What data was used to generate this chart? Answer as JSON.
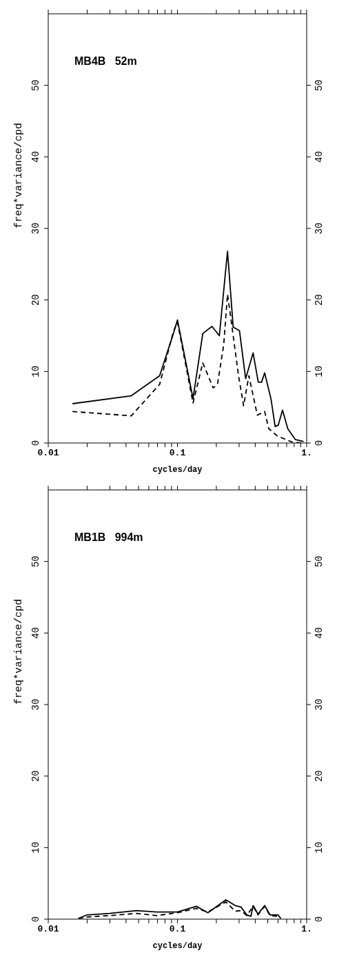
{
  "chart_data": [
    {
      "type": "line",
      "annotations": [
        "MB4B   52m"
      ],
      "xlabel": "cycles/day",
      "ylabel": "freq*variance/cpd",
      "log": "x",
      "xlim": [
        0.01,
        1
      ],
      "xticks": [
        {
          "value": 0.01,
          "label": "0.01"
        },
        {
          "value": 0.02,
          "label": null
        },
        {
          "value": 0.03,
          "label": null
        },
        {
          "value": 0.04,
          "label": null
        },
        {
          "value": 0.05,
          "label": null
        },
        {
          "value": 0.06,
          "label": null
        },
        {
          "value": 0.07,
          "label": null
        },
        {
          "value": 0.08,
          "label": null
        },
        {
          "value": 0.09,
          "label": null
        },
        {
          "value": 0.1,
          "label": "0.1"
        },
        {
          "value": 0.2,
          "label": null
        },
        {
          "value": 0.3,
          "label": null
        },
        {
          "value": 0.4,
          "label": null
        },
        {
          "value": 0.5,
          "label": null
        },
        {
          "value": 0.6,
          "label": null
        },
        {
          "value": 0.7,
          "label": null
        },
        {
          "value": 0.8,
          "label": null
        },
        {
          "value": 0.9,
          "label": null
        },
        {
          "value": 1,
          "label": "1."
        }
      ],
      "ylim": [
        0,
        60
      ],
      "yticks": [
        0,
        10,
        20,
        30,
        40,
        50
      ],
      "y2lim": [
        0,
        60
      ],
      "y2ticks": [
        0,
        10,
        20,
        30,
        40,
        50
      ],
      "series": [
        {
          "color": "#000000",
          "line_style": "solid",
          "x": [
            0.0154,
            0.0439,
            0.0728,
            0.093,
            0.1,
            0.132,
            0.157,
            0.185,
            0.211,
            0.244,
            0.27,
            0.302,
            0.337,
            0.385,
            0.422,
            0.447,
            0.473,
            0.529,
            0.57,
            0.603,
            0.65,
            0.714,
            0.815,
            0.946
          ],
          "values": [
            5.5,
            6.6,
            9.4,
            15.3,
            17.2,
            6.2,
            15.3,
            16.3,
            15.0,
            26.8,
            16.2,
            15.7,
            9.0,
            12.6,
            8.5,
            8.5,
            9.8,
            6.2,
            2.3,
            2.5,
            4.6,
            2.0,
            0.5,
            0.2
          ]
        },
        {
          "color": "#000000",
          "line_style": "dashed",
          "x": [
            0.0154,
            0.0439,
            0.0728,
            0.093,
            0.1,
            0.132,
            0.157,
            0.189,
            0.204,
            0.228,
            0.244,
            0.26,
            0.297,
            0.325,
            0.357,
            0.415,
            0.473,
            0.509,
            0.591,
            0.689,
            0.78,
            0.93
          ],
          "values": [
            4.4,
            3.8,
            8.2,
            15.6,
            16.9,
            5.6,
            11.2,
            7.7,
            8.2,
            13.7,
            20.8,
            17.2,
            9.4,
            5.2,
            9.4,
            3.9,
            4.4,
            2.0,
            1.0,
            0.5,
            0.1,
            0
          ]
        }
      ]
    },
    {
      "type": "line",
      "annotations": [
        "MB1B   994m"
      ],
      "xlabel": "cycles/day",
      "ylabel": "freq*variance/cpd",
      "log": "x",
      "xlim": [
        0.01,
        1
      ],
      "xticks": [
        {
          "value": 0.01,
          "label": "0.01"
        },
        {
          "value": 0.02,
          "label": null
        },
        {
          "value": 0.03,
          "label": null
        },
        {
          "value": 0.04,
          "label": null
        },
        {
          "value": 0.05,
          "label": null
        },
        {
          "value": 0.06,
          "label": null
        },
        {
          "value": 0.07,
          "label": null
        },
        {
          "value": 0.08,
          "label": null
        },
        {
          "value": 0.09,
          "label": null
        },
        {
          "value": 0.1,
          "label": "0.1"
        },
        {
          "value": 0.2,
          "label": null
        },
        {
          "value": 0.3,
          "label": null
        },
        {
          "value": 0.4,
          "label": null
        },
        {
          "value": 0.5,
          "label": null
        },
        {
          "value": 0.6,
          "label": null
        },
        {
          "value": 0.7,
          "label": null
        },
        {
          "value": 0.8,
          "label": null
        },
        {
          "value": 0.9,
          "label": null
        },
        {
          "value": 1,
          "label": "1."
        }
      ],
      "ylim": [
        0,
        60
      ],
      "yticks": [
        0,
        10,
        20,
        30,
        40,
        50
      ],
      "y2lim": [
        0,
        60
      ],
      "y2ticks": [
        0,
        10,
        20,
        30,
        40,
        50
      ],
      "series": [
        {
          "color": "#000000",
          "line_style": "solid",
          "x": [
            0.0171,
            0.02,
            0.03,
            0.0482,
            0.0689,
            0.1,
            0.14,
            0.172,
            0.237,
            0.28,
            0.31,
            0.344,
            0.37,
            0.385,
            0.42,
            0.473,
            0.52,
            0.6,
            0.63
          ],
          "values": [
            0.1,
            0.6,
            0.8,
            1.2,
            1.0,
            1.0,
            1.8,
            0.9,
            2.7,
            1.9,
            1.7,
            0.6,
            0.4,
            1.9,
            0.7,
            1.9,
            0.6,
            0.6,
            0.1
          ]
        },
        {
          "color": "#000000",
          "line_style": "dashed",
          "x": [
            0.0171,
            0.02,
            0.03,
            0.0482,
            0.0689,
            0.1,
            0.14,
            0.172,
            0.237,
            0.28,
            0.31,
            0.344,
            0.385,
            0.42,
            0.473,
            0.52,
            0.6,
            0.63
          ],
          "values": [
            0.1,
            0.3,
            0.5,
            0.8,
            0.5,
            0.9,
            1.5,
            1.0,
            2.4,
            1.1,
            1.2,
            0.5,
            1.8,
            0.6,
            1.8,
            0.5,
            0.4,
            0.1
          ]
        }
      ]
    }
  ]
}
